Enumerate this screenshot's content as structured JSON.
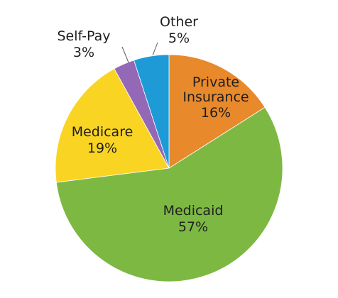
{
  "chart_data": {
    "type": "pie",
    "title": "",
    "slices": [
      {
        "label_line1": "Private",
        "label_line2": "Insurance",
        "value_label": "16%",
        "value": 16,
        "color": "#E8892B"
      },
      {
        "label_line1": "Medicaid",
        "label_line2": "",
        "value_label": "57%",
        "value": 57,
        "color": "#7DB843"
      },
      {
        "label_line1": "Medicare",
        "label_line2": "",
        "value_label": "19%",
        "value": 19,
        "color": "#F9D423"
      },
      {
        "label_line1": "Self-Pay",
        "label_line2": "",
        "value_label": "3%",
        "value": 3,
        "color": "#9368B7"
      },
      {
        "label_line1": "Other",
        "label_line2": "",
        "value_label": "5%",
        "value": 5,
        "color": "#1E9AD6"
      }
    ],
    "legend": "none"
  }
}
